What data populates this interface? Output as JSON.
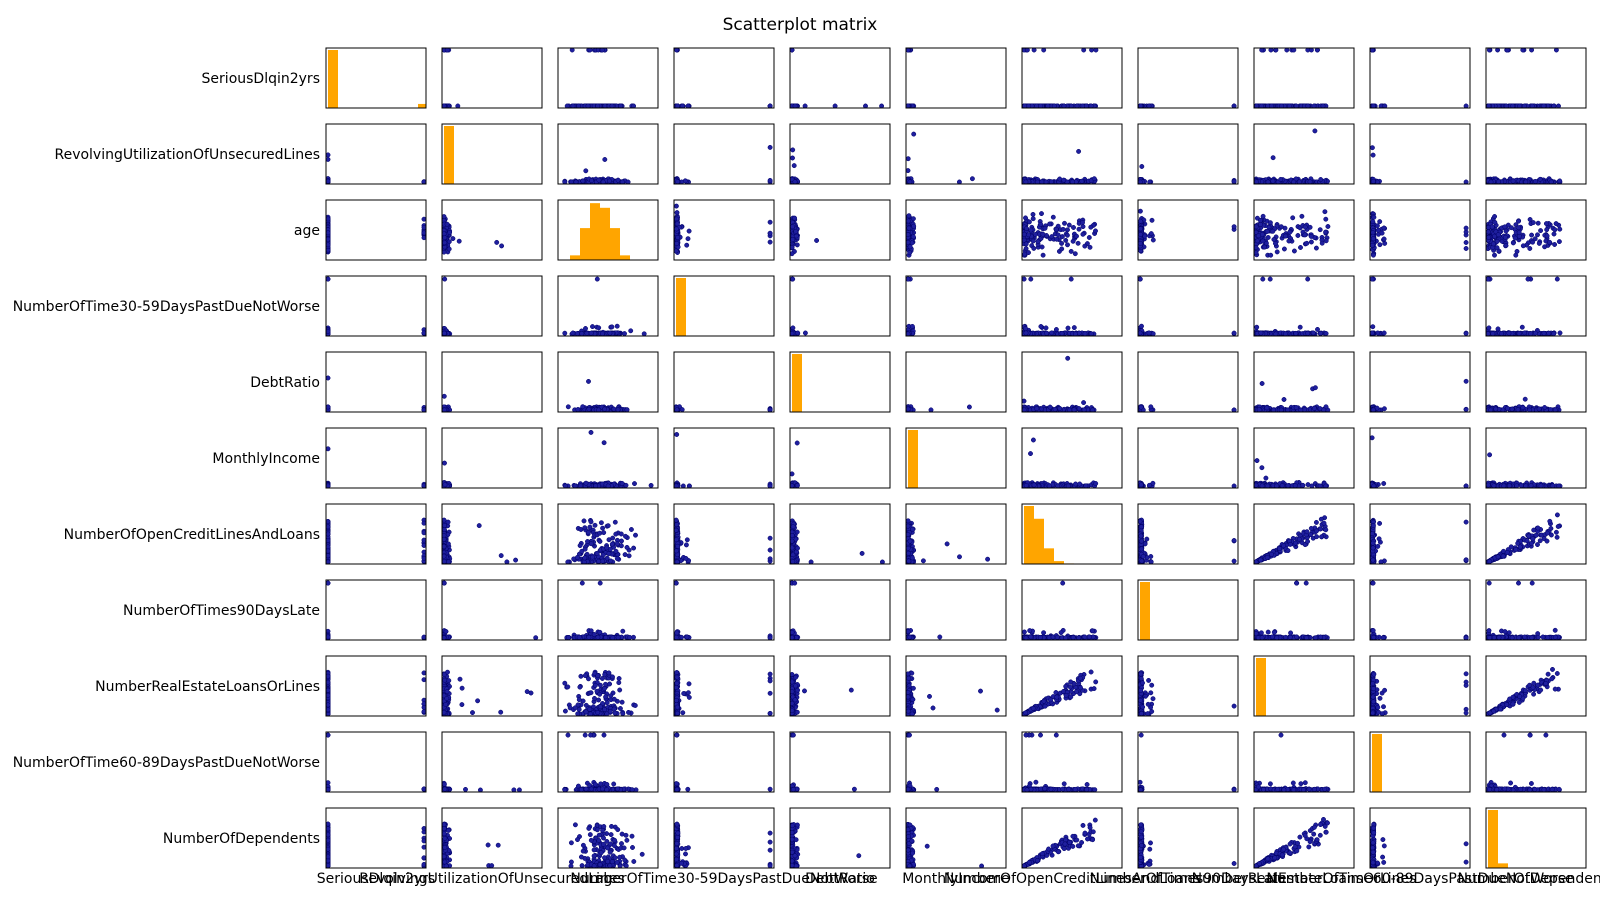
{
  "title": "Scatterplot matrix",
  "colors": {
    "scatter_fill": "#1f1f9e",
    "scatter_edge": "#000066",
    "hist": "#ffa500",
    "frame": "#000000"
  },
  "chart_data": {
    "type": "scatter",
    "title": "Scatterplot matrix",
    "diagonal": "histogram",
    "grid": false,
    "ticks_shown": false,
    "variables": [
      "SeriousDlqin2yrs",
      "RevolvingUtilizationOfUnsecuredLines",
      "age",
      "NumberOfTime30-59DaysPastDueNotWorse",
      "DebtRatio",
      "MonthlyIncome",
      "NumberOfOpenCreditLinesAndLoans",
      "NumberOfTimes90DaysLate",
      "NumberRealEstateLoansOrLines",
      "NumberOfTime60-89DaysPastDueNotWorse",
      "NumberOfDependents"
    ],
    "histograms": [
      {
        "variable": "SeriousDlqin2yrs",
        "bin_heights": [
          1.0,
          0,
          0,
          0,
          0,
          0,
          0,
          0,
          0,
          0.07
        ]
      },
      {
        "variable": "RevolvingUtilizationOfUnsecuredLines",
        "bin_heights": [
          1.0,
          0,
          0,
          0,
          0,
          0,
          0,
          0,
          0,
          0
        ]
      },
      {
        "variable": "age",
        "bin_heights": [
          0,
          0.08,
          0.55,
          0.98,
          0.9,
          0.55,
          0.08,
          0,
          0,
          0
        ]
      },
      {
        "variable": "NumberOfTime30-59DaysPastDueNotWorse",
        "bin_heights": [
          1.0,
          0,
          0,
          0,
          0,
          0,
          0,
          0,
          0,
          0
        ]
      },
      {
        "variable": "DebtRatio",
        "bin_heights": [
          1.0,
          0,
          0,
          0,
          0,
          0,
          0,
          0,
          0,
          0
        ]
      },
      {
        "variable": "MonthlyIncome",
        "bin_heights": [
          1.0,
          0,
          0,
          0,
          0,
          0,
          0,
          0,
          0,
          0
        ]
      },
      {
        "variable": "NumberOfOpenCreditLinesAndLoans",
        "bin_heights": [
          1.0,
          0.78,
          0.27,
          0.05,
          0.01,
          0,
          0,
          0,
          0,
          0
        ]
      },
      {
        "variable": "NumberOfTimes90DaysLate",
        "bin_heights": [
          1.0,
          0,
          0,
          0,
          0,
          0,
          0,
          0,
          0,
          0
        ]
      },
      {
        "variable": "NumberRealEstateLoansOrLines",
        "bin_heights": [
          1.0,
          0,
          0,
          0,
          0,
          0,
          0,
          0,
          0,
          0
        ]
      },
      {
        "variable": "NumberOfTime60-89DaysPastDueNotWorse",
        "bin_heights": [
          1.0,
          0,
          0,
          0,
          0,
          0,
          0,
          0,
          0,
          0
        ]
      },
      {
        "variable": "NumberOfDependents",
        "bin_heights": [
          1.0,
          0.08,
          0,
          0,
          0,
          0,
          0,
          0,
          0,
          0
        ]
      }
    ]
  }
}
